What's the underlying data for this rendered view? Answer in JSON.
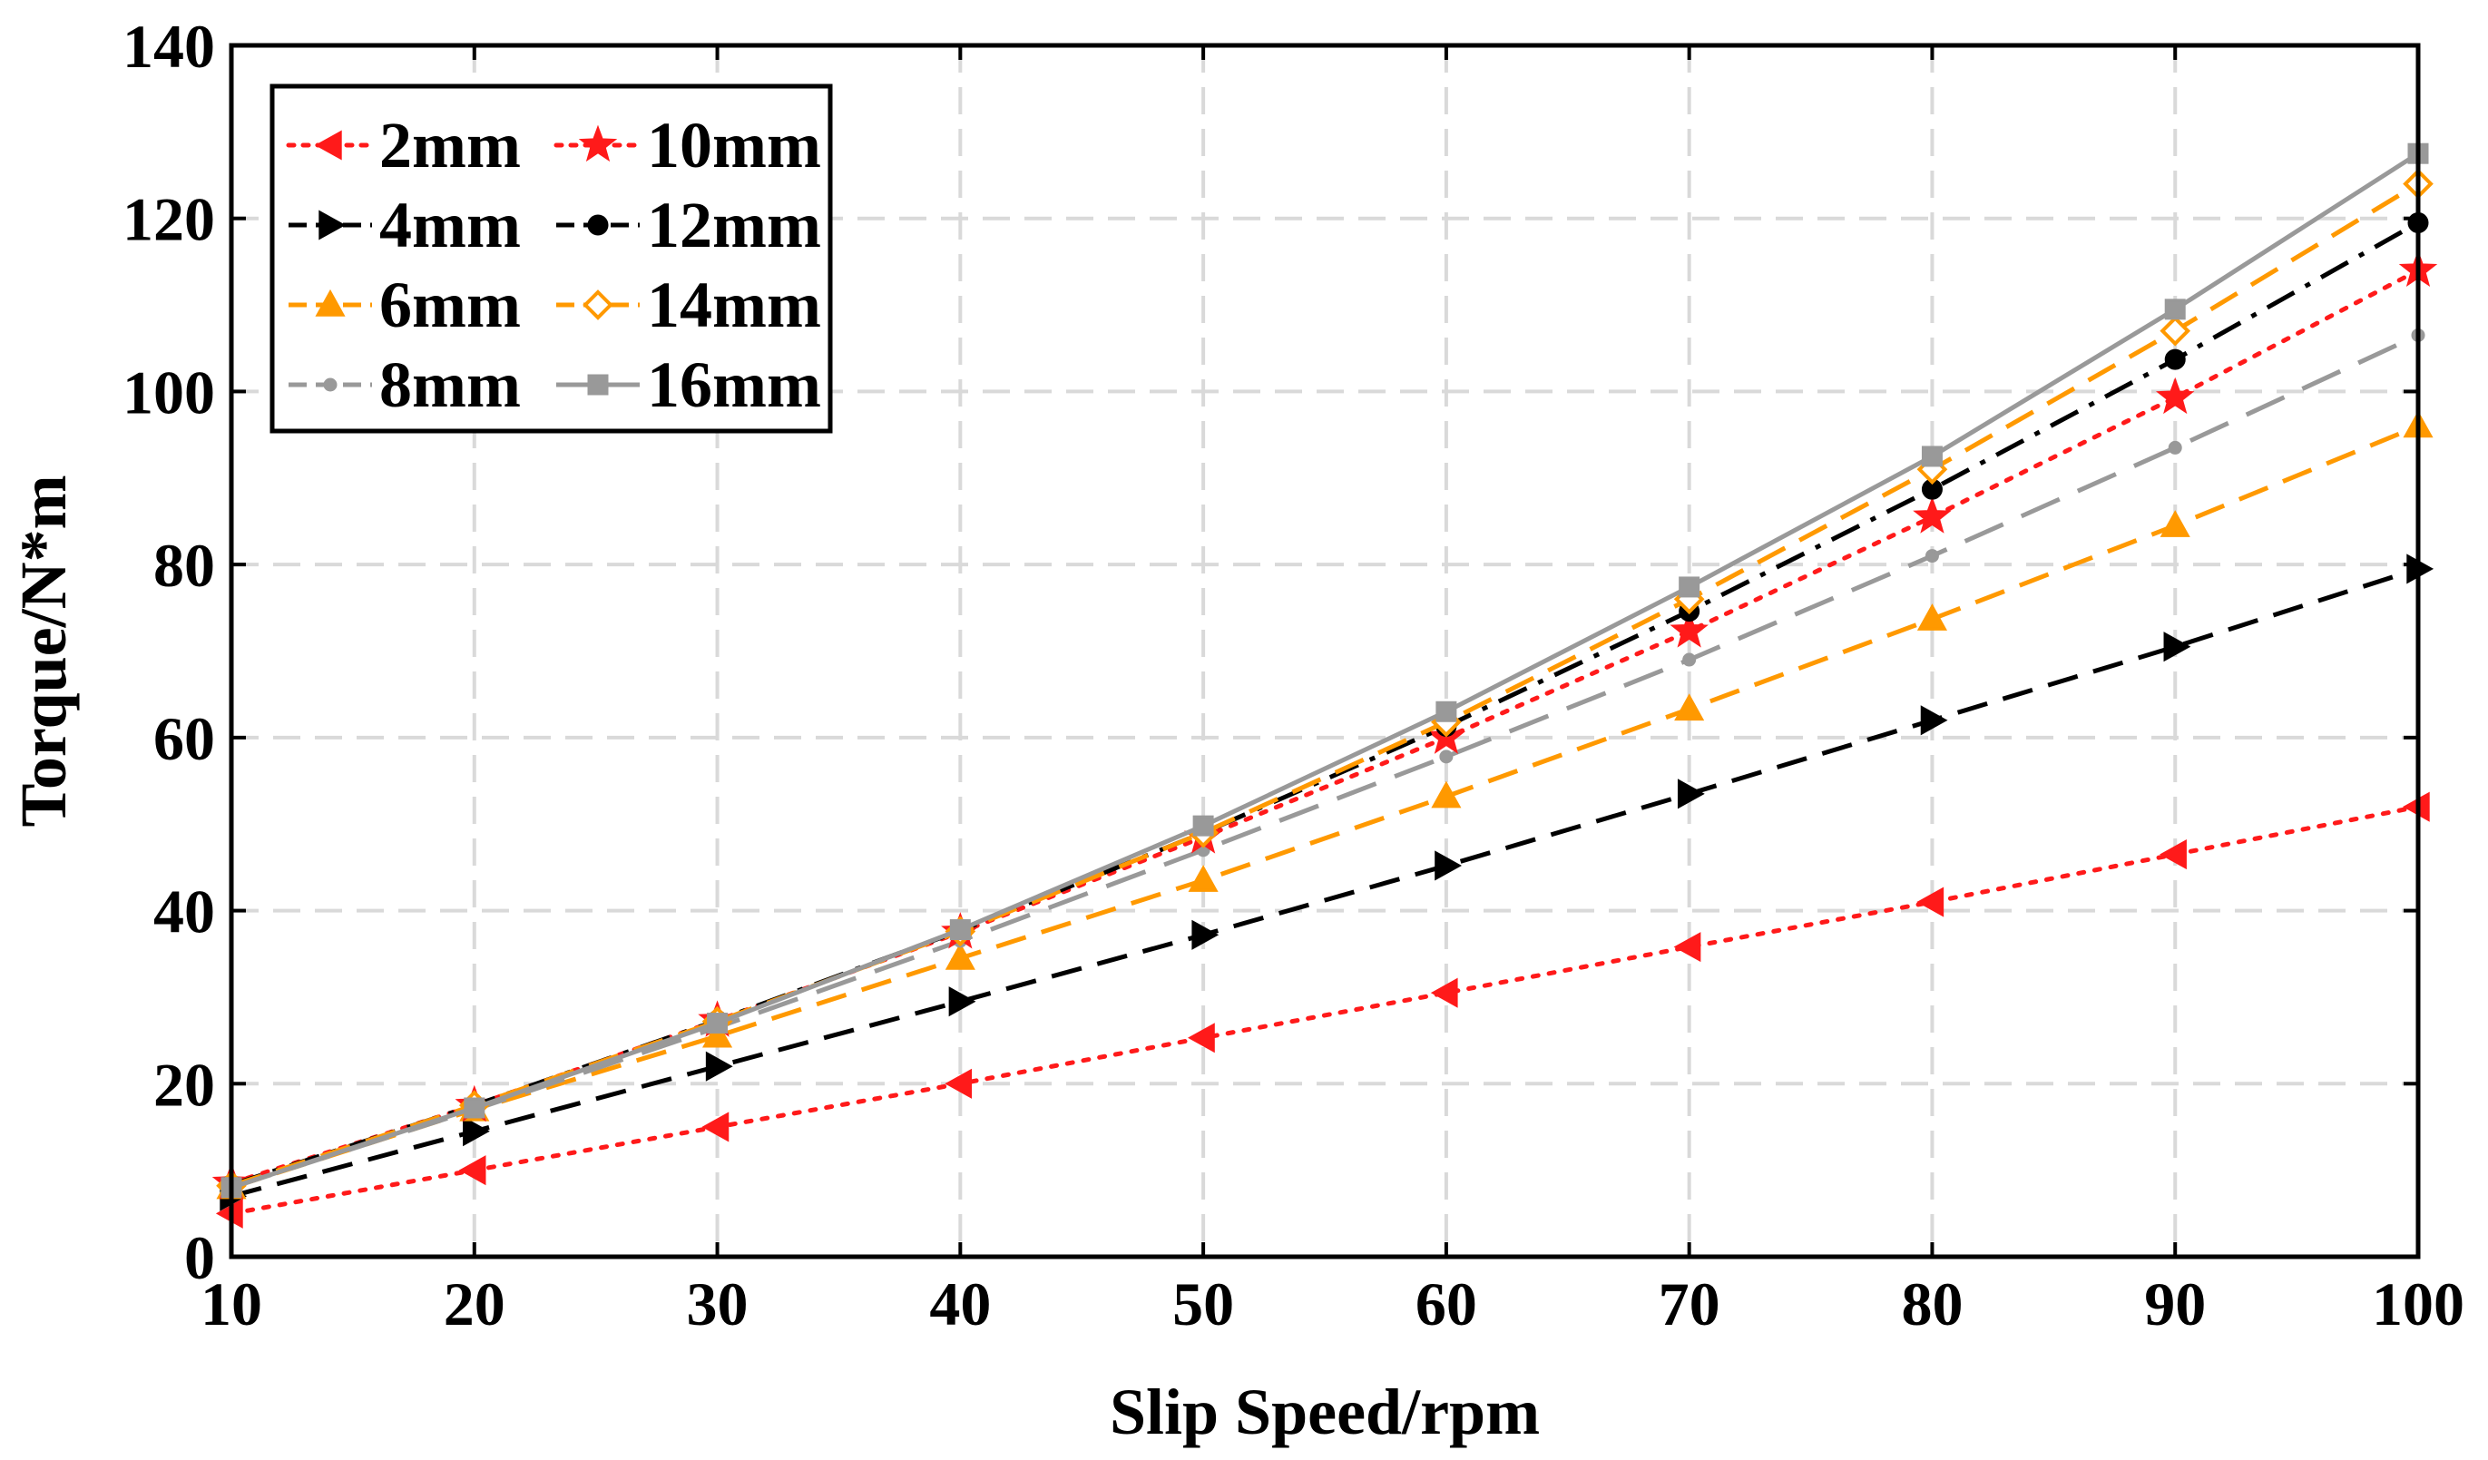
{
  "chart_data": {
    "type": "line",
    "title": "",
    "xlabel": "Slip Speed/rpm",
    "ylabel": "Torque/N*m",
    "xlim": [
      10,
      100
    ],
    "ylim": [
      0,
      140
    ],
    "grid": true,
    "legend_position": "top-left",
    "x": [
      10,
      20,
      30,
      40,
      50,
      60,
      70,
      80,
      90,
      100
    ],
    "x_ticks": [
      "10",
      "20",
      "30",
      "40",
      "50",
      "60",
      "70",
      "80",
      "90",
      "100"
    ],
    "y_ticks": [
      "0",
      "20",
      "40",
      "60",
      "80",
      "100",
      "120",
      "140"
    ],
    "series": [
      {
        "name": "2mm",
        "color": "#ff1a1a",
        "line": "dotted",
        "marker": "triangle-left",
        "values": [
          5,
          10,
          15,
          20,
          25.3,
          30.5,
          35.8,
          41,
          46.5,
          52
        ]
      },
      {
        "name": "4mm",
        "color": "#000000",
        "line": "dashed",
        "marker": "triangle-right",
        "values": [
          7,
          14.5,
          22,
          29.5,
          37.2,
          45.2,
          53.5,
          62,
          70.5,
          79.5
        ]
      },
      {
        "name": "6mm",
        "color": "#ff9900",
        "line": "dashed",
        "marker": "triangle-up",
        "values": [
          8,
          17,
          25.5,
          34.5,
          43.5,
          53.2,
          63.3,
          73.7,
          84.5,
          96
        ]
      },
      {
        "name": "8mm",
        "color": "#999999",
        "line": "longdash",
        "marker": "dot",
        "values": [
          8,
          17,
          26.5,
          36.5,
          47,
          57.8,
          69,
          81,
          93.5,
          106.5
        ]
      },
      {
        "name": "10mm",
        "color": "#ff1a1a",
        "line": "dotted",
        "marker": "star",
        "values": [
          8.5,
          17.5,
          27.3,
          37.5,
          48.5,
          60,
          72.3,
          85.5,
          99.3,
          114
        ]
      },
      {
        "name": "12mm",
        "color": "#000000",
        "line": "dashdot",
        "marker": "circle",
        "values": [
          8.3,
          17.5,
          27.3,
          37.7,
          49,
          61.3,
          74.6,
          88.7,
          103.7,
          119.5
        ]
      },
      {
        "name": "14mm",
        "color": "#ff9900",
        "line": "dashed",
        "marker": "diamond",
        "values": [
          8.2,
          17.5,
          27.2,
          37.6,
          49,
          61.8,
          76,
          91,
          107,
          124
        ]
      },
      {
        "name": "16mm",
        "color": "#999999",
        "line": "solid",
        "marker": "square",
        "values": [
          8,
          17.2,
          27,
          37.8,
          49.8,
          63,
          77.4,
          92.5,
          109.5,
          127.5
        ]
      }
    ]
  }
}
